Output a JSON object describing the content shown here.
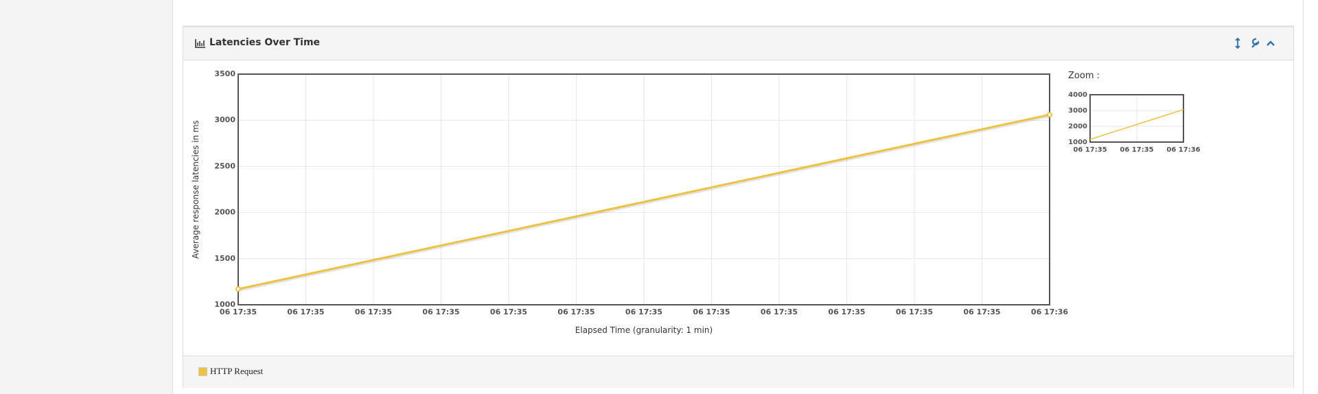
{
  "panel": {
    "title": "Latencies Over Time",
    "legend": "HTTP Request"
  },
  "chart_data": [
    {
      "type": "line",
      "x_label": "Elapsed Time (granularity: 1 min)",
      "y_label": "Average response latencies in ms",
      "x": [
        0,
        12
      ],
      "series": [
        {
          "name": "HTTP Request",
          "color": "#edc240",
          "values": [
            1170,
            3060
          ]
        }
      ],
      "xlim": [
        0,
        12
      ],
      "xticks": [
        {
          "value": 0,
          "label": "06 17:35"
        },
        {
          "value": 1,
          "label": "06 17:35"
        },
        {
          "value": 2,
          "label": "06 17:35"
        },
        {
          "value": 3,
          "label": "06 17:35"
        },
        {
          "value": 4,
          "label": "06 17:35"
        },
        {
          "value": 5,
          "label": "06 17:35"
        },
        {
          "value": 6,
          "label": "06 17:35"
        },
        {
          "value": 7,
          "label": "06 17:35"
        },
        {
          "value": 8,
          "label": "06 17:35"
        },
        {
          "value": 9,
          "label": "06 17:35"
        },
        {
          "value": 10,
          "label": "06 17:35"
        },
        {
          "value": 11,
          "label": "06 17:35"
        },
        {
          "value": 12,
          "label": "06 17:36"
        }
      ],
      "ylim": [
        1000,
        3500
      ],
      "yticks": [
        1000,
        1500,
        2000,
        2500,
        3000,
        3500
      ],
      "grid": true,
      "markers": true
    },
    {
      "type": "line",
      "title": "Zoom :",
      "x": [
        0,
        12
      ],
      "series": [
        {
          "color": "#edc240",
          "values": [
            1170,
            3060
          ]
        }
      ],
      "xlim": [
        0,
        12
      ],
      "xticks": [
        {
          "value": 0,
          "label": "06 17:35"
        },
        {
          "value": 6,
          "label": "06 17:35"
        },
        {
          "value": 12,
          "label": "06 17:36"
        }
      ],
      "ylim": [
        1000,
        4000
      ],
      "yticks": [
        1000,
        2000,
        3000,
        4000
      ],
      "grid": true,
      "markers": false
    }
  ]
}
